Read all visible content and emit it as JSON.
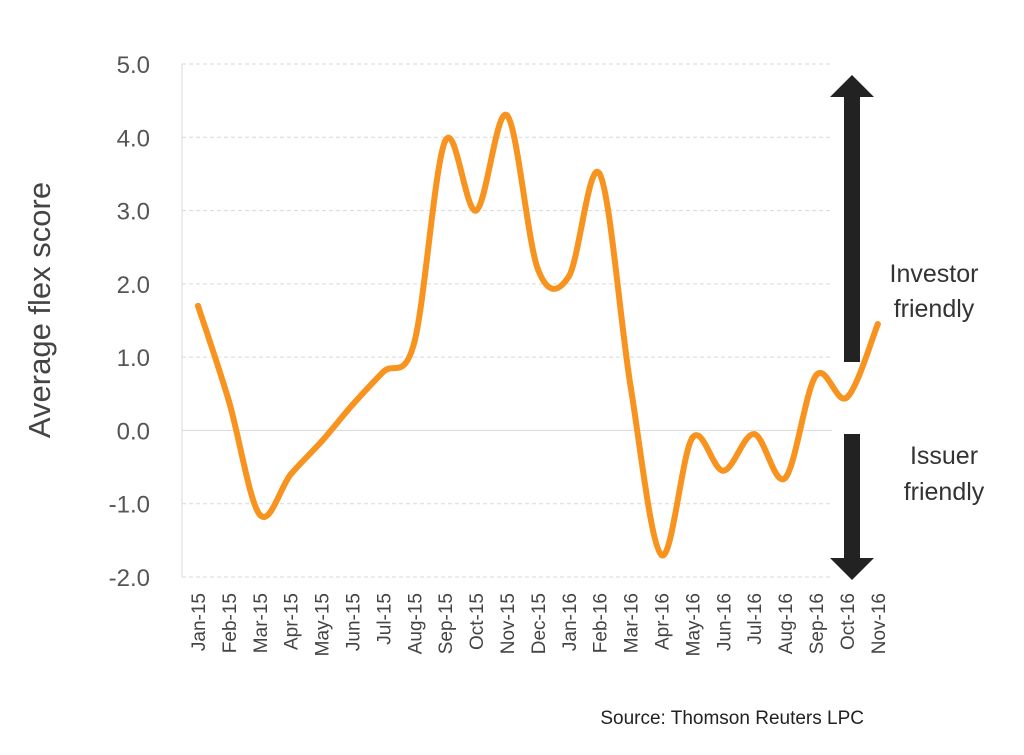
{
  "chart_data": {
    "type": "line",
    "title": "",
    "ylabel": "Average flex score",
    "xlabel": "",
    "ylim": [
      -2.0,
      5.0
    ],
    "yticks": [
      "5.0",
      "4.0",
      "3.0",
      "2.0",
      "1.0",
      "0.0",
      "-1.0",
      "-2.0"
    ],
    "grid": true,
    "line_color": "#f7931e",
    "categories": [
      "Jan-15",
      "Feb-15",
      "Mar-15",
      "Apr-15",
      "May-15",
      "Jun-15",
      "Jul-15",
      "Aug-15",
      "Sep-15",
      "Oct-15",
      "Nov-15",
      "Dec-15",
      "Jan-16",
      "Feb-16",
      "Mar-16",
      "Apr-16",
      "May-16",
      "Jun-16",
      "Jul-16",
      "Aug-16",
      "Sep-16",
      "Oct-16",
      "Nov-16"
    ],
    "values": [
      1.7,
      0.4,
      -1.15,
      -0.6,
      -0.15,
      0.35,
      0.8,
      1.2,
      3.95,
      3.0,
      4.3,
      2.2,
      2.1,
      3.5,
      0.6,
      -1.7,
      -0.1,
      -0.55,
      -0.05,
      -0.65,
      0.75,
      0.45,
      1.45
    ],
    "annotations": {
      "investor_line1": "Investor",
      "investor_line2": "friendly",
      "issuer_line1": "Issuer",
      "issuer_line2": "friendly"
    },
    "arrow_color": "#222222",
    "source": "Source: Thomson Reuters LPC"
  }
}
